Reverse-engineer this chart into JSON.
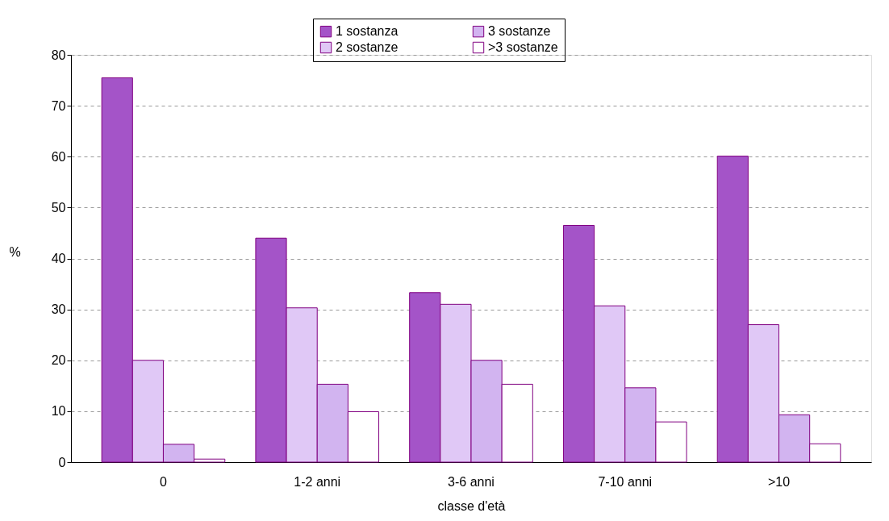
{
  "chart_data": {
    "type": "bar",
    "xlabel": "classe d'età",
    "ylabel": "%",
    "categories": [
      "0",
      "1-2 anni",
      "3-6 anni",
      "7-10 anni",
      ">10"
    ],
    "series": [
      {
        "name": "1 sostanza",
        "color": "#a454c8",
        "values": [
          75.5,
          44.0,
          33.3,
          46.5,
          60.1
        ]
      },
      {
        "name": "2 sostanze",
        "color": "#e0c8f6",
        "values": [
          20.0,
          30.3,
          31.0,
          30.7,
          27.0
        ]
      },
      {
        "name": "3 sostanze",
        "color": "#d2b4f0",
        "values": [
          3.5,
          15.3,
          20.0,
          14.6,
          9.3
        ]
      },
      {
        "name": ">3 sostanze",
        "color": "#ffffff",
        "values": [
          0.6,
          9.9,
          15.3,
          7.9,
          3.6
        ]
      }
    ],
    "ylim": [
      0,
      80
    ],
    "yticks": [
      0,
      10,
      20,
      30,
      40,
      50,
      60,
      70,
      80
    ],
    "grid": "y",
    "legend": "top"
  }
}
